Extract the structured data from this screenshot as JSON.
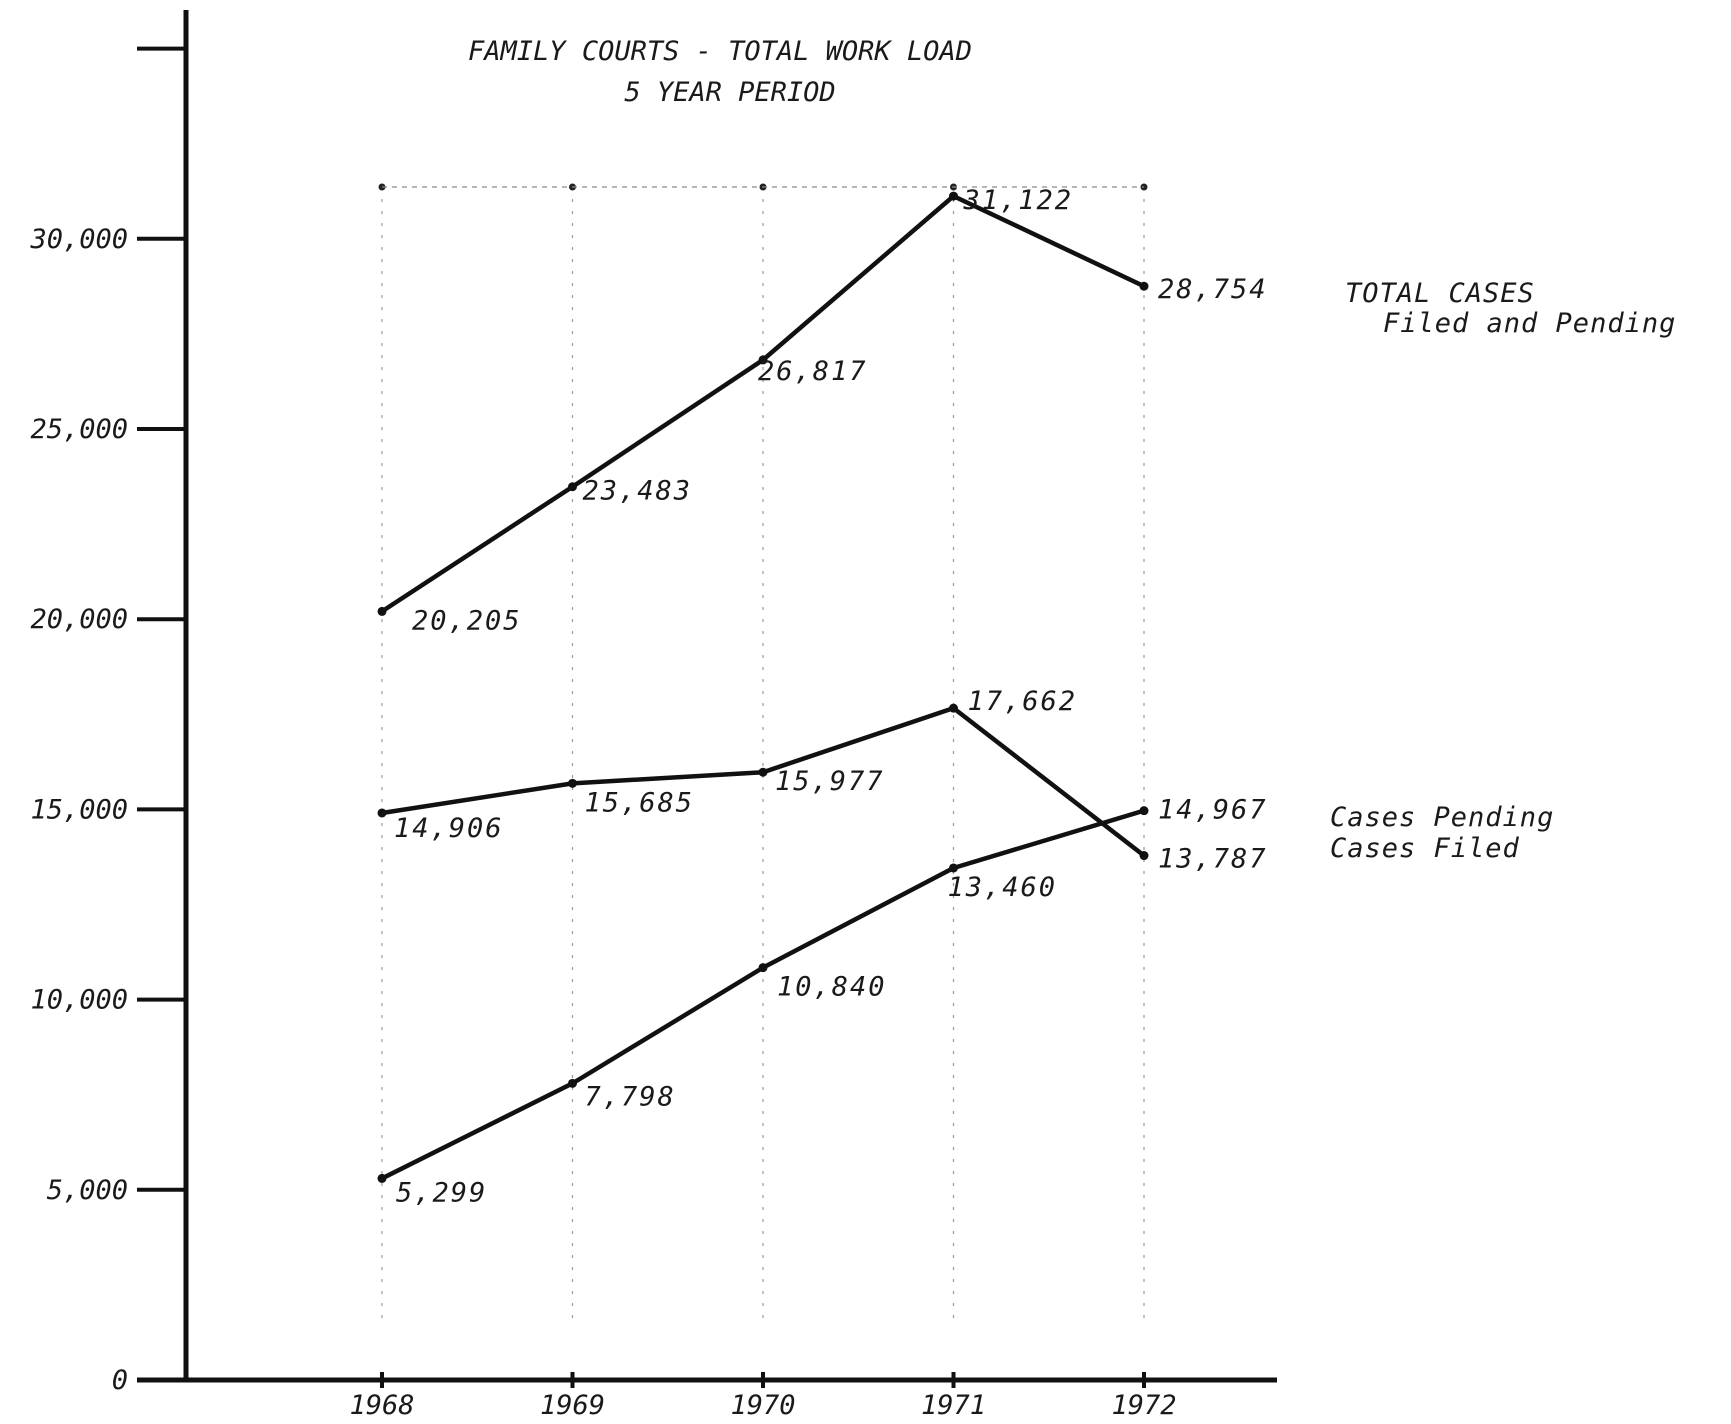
{
  "chart_data": {
    "type": "line",
    "title": [
      "FAMILY COURTS - TOTAL WORK LOAD",
      "5 YEAR PERIOD"
    ],
    "xlabel": "",
    "ylabel": "",
    "categories": [
      "1968",
      "1969",
      "1970",
      "1971",
      "1972"
    ],
    "ylim": [
      0,
      30000
    ],
    "yticks": [
      0,
      5000,
      10000,
      15000,
      20000,
      25000,
      30000
    ],
    "ytick_labels": [
      "0",
      "5,000",
      "10,000",
      "15,000",
      "20,000",
      "25,000",
      "30,000"
    ],
    "grid": "vertical dotted lines",
    "series": [
      {
        "name": "TOTAL CASES Filed and Pending",
        "legend_lines": [
          "TOTAL CASES",
          "Filed and Pending"
        ],
        "values": [
          20205,
          23483,
          26817,
          31122,
          28754
        ],
        "labels": [
          "20,205",
          "23,483",
          "26,817",
          "31,122",
          "28,754"
        ]
      },
      {
        "name": "Cases Pending",
        "legend_lines": [
          "Cases Pending"
        ],
        "values": [
          14906,
          15685,
          15977,
          17662,
          13787
        ],
        "labels": [
          "14,906",
          "15,685",
          "15,977",
          "17,662",
          "13,787"
        ]
      },
      {
        "name": "Cases Filed",
        "legend_lines": [
          "Cases Filed"
        ],
        "values": [
          5299,
          7798,
          10840,
          13460,
          14967
        ],
        "labels": [
          "5,299",
          "7,798",
          "10,840",
          "13,460",
          "14,967"
        ]
      }
    ]
  }
}
